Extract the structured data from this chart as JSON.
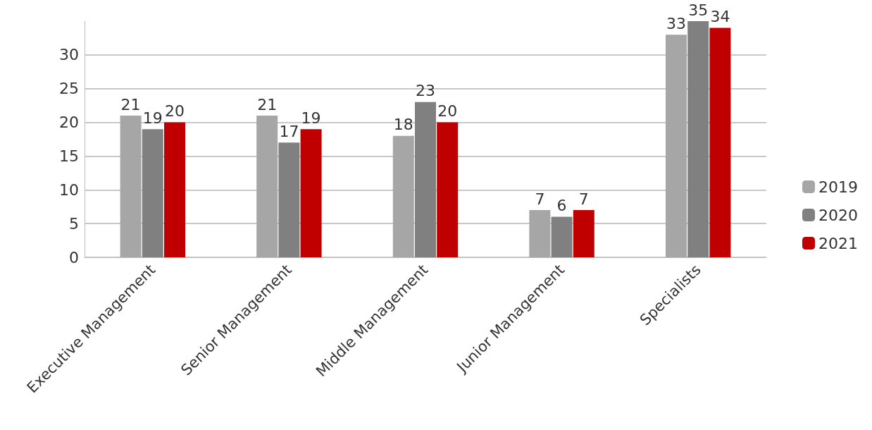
{
  "chart_data": {
    "type": "bar",
    "categories": [
      "Executive Management",
      "Senior Management",
      "Middle Management",
      "Junior Management",
      "Specialists"
    ],
    "series": [
      {
        "name": "2019",
        "color": "#a6a6a6",
        "values": [
          21,
          21,
          18,
          7,
          33
        ]
      },
      {
        "name": "2020",
        "color": "#808080",
        "values": [
          19,
          17,
          23,
          6,
          35
        ]
      },
      {
        "name": "2021",
        "color": "#c00000",
        "values": [
          20,
          19,
          20,
          7,
          34
        ]
      }
    ],
    "ylim": [
      0,
      35
    ],
    "yticks": [
      0,
      5,
      10,
      15,
      20,
      25,
      30
    ],
    "grid": "y",
    "legend": "right",
    "data_labels": true
  }
}
